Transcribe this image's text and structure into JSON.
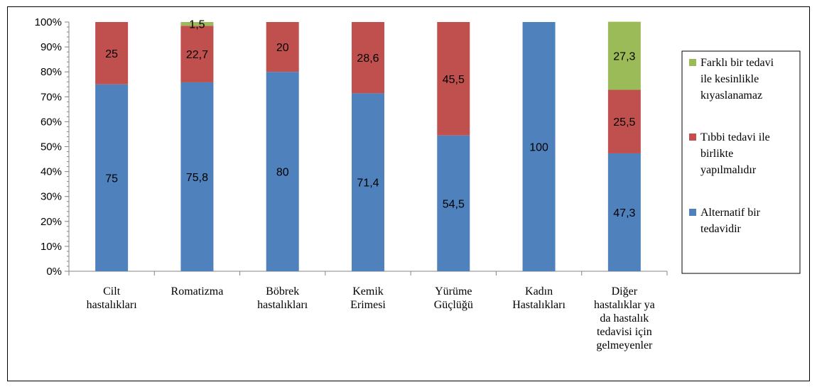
{
  "chart_data": {
    "type": "bar",
    "stacked": true,
    "percent_stacked": true,
    "title": "",
    "xlabel": "",
    "ylabel": "",
    "ylim": [
      0,
      100
    ],
    "y_ticks": [
      "0%",
      "10%",
      "20%",
      "30%",
      "40%",
      "50%",
      "60%",
      "70%",
      "80%",
      "90%",
      "100%"
    ],
    "grid": false,
    "legend_position": "right",
    "categories": [
      [
        "Cilt",
        "hastalıkları"
      ],
      [
        "Romatizma"
      ],
      [
        "Böbrek",
        "hastalıkları"
      ],
      [
        "Kemik",
        "Erimesi"
      ],
      [
        "Yürüme",
        "Güçlüğü"
      ],
      [
        "Kadın",
        "Hastalıkları"
      ],
      [
        "Diğer",
        "hastalıklar ya",
        "da hastalık",
        "tedavisi için",
        "gelmeyenler"
      ]
    ],
    "series": [
      {
        "name": "Alternatif bir tedavidir",
        "name_lines": [
          "Alternatif bir",
          "tedavidir"
        ],
        "color": "#4F81BD",
        "values": [
          75,
          75.8,
          80,
          71.4,
          54.5,
          100,
          47.3
        ],
        "labels": [
          "75",
          "75,8",
          "80",
          "71,4",
          "54,5",
          "100",
          "47,3"
        ]
      },
      {
        "name": "Tıbbi tedavi ile birlikte yapılmalıdır",
        "name_lines": [
          "Tıbbi tedavi ile",
          "birlikte",
          "yapılmalıdır"
        ],
        "color": "#C0504D",
        "values": [
          25,
          22.7,
          20,
          28.6,
          45.5,
          0,
          25.5
        ],
        "labels": [
          "25",
          "22,7",
          "20",
          "28,6",
          "45,5",
          "",
          "25,5"
        ]
      },
      {
        "name": "Farklı bir tedavi ile kesinlikle kıyaslanamaz",
        "name_lines": [
          "Farklı bir tedavi",
          "ile kesinlikle",
          "kıyaslanamaz"
        ],
        "color": "#9BBB59",
        "values": [
          0,
          1.5,
          0,
          0,
          0,
          0,
          27.3
        ],
        "labels": [
          "",
          "1,5",
          "",
          "",
          "",
          "",
          "27,3"
        ]
      }
    ]
  }
}
